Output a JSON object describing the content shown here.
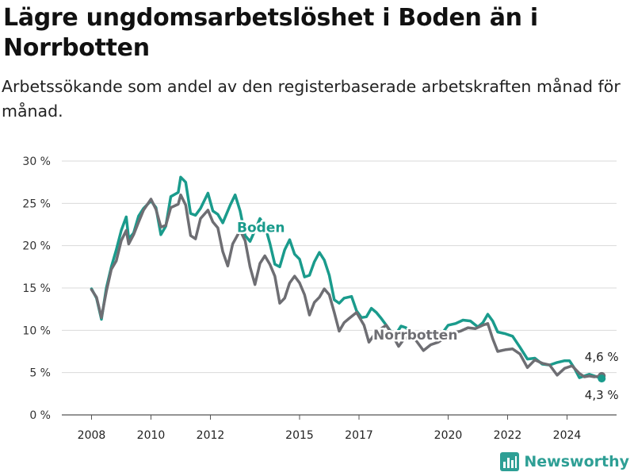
{
  "chart_data": {
    "type": "line",
    "title": "Lägre ungdomsarbetslöshet i Boden än i Norrbotten",
    "subtitle": "Arbetssökande som andel av den registerbaserade arbetskraften månad för månad.",
    "x_ticks": [
      "2008",
      "2010",
      "2012",
      "2015",
      "2017",
      "2020",
      "2022",
      "2024"
    ],
    "y_ticks": [
      "0 %",
      "5 %",
      "10 %",
      "15 %",
      "20 %",
      "25 %",
      "30 %"
    ],
    "xlim": [
      "2007-01",
      "2025-09"
    ],
    "ylim": [
      0,
      30
    ],
    "grid": true,
    "series": [
      {
        "name": "Boden",
        "color": "#1a9b8c",
        "end_label": "4,3 %",
        "points": [
          [
            "2008-01",
            14.9
          ],
          [
            "2008-03",
            13.8
          ],
          [
            "2008-05",
            11.3
          ],
          [
            "2008-07",
            15.0
          ],
          [
            "2008-09",
            17.5
          ],
          [
            "2008-11",
            19.5
          ],
          [
            "2009-01",
            21.8
          ],
          [
            "2009-03",
            23.4
          ],
          [
            "2009-04",
            20.8
          ],
          [
            "2009-06",
            21.5
          ],
          [
            "2009-08",
            23.5
          ],
          [
            "2009-10",
            24.4
          ],
          [
            "2010-01",
            25.3
          ],
          [
            "2010-03",
            24.5
          ],
          [
            "2010-05",
            21.3
          ],
          [
            "2010-07",
            22.3
          ],
          [
            "2010-09",
            25.8
          ],
          [
            "2010-12",
            26.3
          ],
          [
            "2011-01",
            28.1
          ],
          [
            "2011-03",
            27.5
          ],
          [
            "2011-05",
            23.8
          ],
          [
            "2011-07",
            23.6
          ],
          [
            "2011-09",
            24.4
          ],
          [
            "2011-12",
            26.2
          ],
          [
            "2012-02",
            24.1
          ],
          [
            "2012-04",
            23.7
          ],
          [
            "2012-06",
            22.7
          ],
          [
            "2012-09",
            24.8
          ],
          [
            "2012-11",
            26.0
          ],
          [
            "2013-01",
            24.1
          ],
          [
            "2013-03",
            21.2
          ],
          [
            "2013-05",
            20.5
          ],
          [
            "2013-07",
            21.8
          ],
          [
            "2013-09",
            23.2
          ],
          [
            "2013-11",
            22.4
          ],
          [
            "2014-01",
            20.3
          ],
          [
            "2014-03",
            17.8
          ],
          [
            "2014-05",
            17.5
          ],
          [
            "2014-07",
            19.5
          ],
          [
            "2014-09",
            20.7
          ],
          [
            "2014-11",
            19.0
          ],
          [
            "2015-01",
            18.4
          ],
          [
            "2015-03",
            16.3
          ],
          [
            "2015-05",
            16.5
          ],
          [
            "2015-07",
            18.1
          ],
          [
            "2015-09",
            19.2
          ],
          [
            "2015-11",
            18.3
          ],
          [
            "2016-01",
            16.5
          ],
          [
            "2016-03",
            13.6
          ],
          [
            "2016-05",
            13.2
          ],
          [
            "2016-07",
            13.8
          ],
          [
            "2016-10",
            14.0
          ],
          [
            "2016-12",
            12.3
          ],
          [
            "2017-02",
            11.5
          ],
          [
            "2017-04",
            11.6
          ],
          [
            "2017-06",
            12.6
          ],
          [
            "2017-08",
            12.1
          ],
          [
            "2017-10",
            11.4
          ],
          [
            "2017-12",
            10.6
          ],
          [
            "2018-02",
            9.8
          ],
          [
            "2018-04",
            9.6
          ],
          [
            "2018-06",
            10.5
          ],
          [
            "2018-08",
            10.3
          ],
          [
            "2018-10",
            9.6
          ],
          [
            "2019-01",
            9.3
          ],
          [
            "2019-04",
            9.1
          ],
          [
            "2019-07",
            9.0
          ],
          [
            "2019-10",
            9.4
          ],
          [
            "2020-01",
            10.6
          ],
          [
            "2020-04",
            10.8
          ],
          [
            "2020-07",
            11.2
          ],
          [
            "2020-10",
            11.1
          ],
          [
            "2021-01",
            10.4
          ],
          [
            "2021-03",
            10.9
          ],
          [
            "2021-05",
            11.9
          ],
          [
            "2021-07",
            11.1
          ],
          [
            "2021-09",
            9.8
          ],
          [
            "2021-12",
            9.6
          ],
          [
            "2022-03",
            9.3
          ],
          [
            "2022-06",
            8.0
          ],
          [
            "2022-09",
            6.6
          ],
          [
            "2022-12",
            6.7
          ],
          [
            "2023-03",
            6.0
          ],
          [
            "2023-06",
            5.9
          ],
          [
            "2023-09",
            6.2
          ],
          [
            "2023-12",
            6.4
          ],
          [
            "2024-02",
            6.4
          ],
          [
            "2024-04",
            5.5
          ],
          [
            "2024-06",
            4.4
          ],
          [
            "2024-08",
            4.6
          ],
          [
            "2024-10",
            4.8
          ],
          [
            "2024-12",
            4.6
          ],
          [
            "2025-03",
            4.3
          ]
        ]
      },
      {
        "name": "Norrbotten",
        "color": "#6e6e73",
        "end_label": "4,6 %",
        "points": [
          [
            "2008-01",
            14.8
          ],
          [
            "2008-03",
            13.9
          ],
          [
            "2008-05",
            11.5
          ],
          [
            "2008-07",
            14.6
          ],
          [
            "2008-09",
            17.2
          ],
          [
            "2008-11",
            18.2
          ],
          [
            "2009-01",
            20.6
          ],
          [
            "2009-03",
            21.8
          ],
          [
            "2009-04",
            20.2
          ],
          [
            "2009-06",
            21.3
          ],
          [
            "2009-08",
            22.8
          ],
          [
            "2009-10",
            24.2
          ],
          [
            "2010-01",
            25.5
          ],
          [
            "2010-03",
            24.3
          ],
          [
            "2010-05",
            22.2
          ],
          [
            "2010-07",
            22.4
          ],
          [
            "2010-09",
            24.5
          ],
          [
            "2010-12",
            24.9
          ],
          [
            "2011-01",
            26.0
          ],
          [
            "2011-03",
            24.8
          ],
          [
            "2011-05",
            21.2
          ],
          [
            "2011-07",
            20.8
          ],
          [
            "2011-09",
            23.2
          ],
          [
            "2011-12",
            24.2
          ],
          [
            "2012-02",
            22.8
          ],
          [
            "2012-04",
            22.1
          ],
          [
            "2012-06",
            19.3
          ],
          [
            "2012-08",
            17.6
          ],
          [
            "2012-10",
            20.2
          ],
          [
            "2013-01",
            21.8
          ],
          [
            "2013-03",
            20.6
          ],
          [
            "2013-05",
            17.5
          ],
          [
            "2013-07",
            15.4
          ],
          [
            "2013-09",
            17.9
          ],
          [
            "2013-11",
            18.8
          ],
          [
            "2014-01",
            17.8
          ],
          [
            "2014-03",
            16.4
          ],
          [
            "2014-05",
            13.2
          ],
          [
            "2014-07",
            13.8
          ],
          [
            "2014-09",
            15.6
          ],
          [
            "2014-11",
            16.4
          ],
          [
            "2015-01",
            15.6
          ],
          [
            "2015-03",
            14.2
          ],
          [
            "2015-05",
            11.8
          ],
          [
            "2015-07",
            13.3
          ],
          [
            "2015-09",
            13.9
          ],
          [
            "2015-11",
            14.9
          ],
          [
            "2016-01",
            14.2
          ],
          [
            "2016-03",
            12.1
          ],
          [
            "2016-05",
            9.9
          ],
          [
            "2016-07",
            10.9
          ],
          [
            "2016-09",
            11.4
          ],
          [
            "2016-12",
            12.1
          ],
          [
            "2017-03",
            10.6
          ],
          [
            "2017-05",
            8.6
          ],
          [
            "2017-07",
            9.4
          ],
          [
            "2017-10",
            10.2
          ],
          [
            "2017-12",
            10.6
          ],
          [
            "2018-02",
            9.7
          ],
          [
            "2018-05",
            8.1
          ],
          [
            "2018-07",
            8.9
          ],
          [
            "2018-10",
            9.4
          ],
          [
            "2018-12",
            8.8
          ],
          [
            "2019-03",
            7.6
          ],
          [
            "2019-06",
            8.3
          ],
          [
            "2019-09",
            8.6
          ],
          [
            "2019-12",
            9.2
          ],
          [
            "2020-03",
            9.7
          ],
          [
            "2020-06",
            9.9
          ],
          [
            "2020-09",
            10.3
          ],
          [
            "2020-12",
            10.2
          ],
          [
            "2021-03",
            10.6
          ],
          [
            "2021-05",
            10.8
          ],
          [
            "2021-07",
            9.0
          ],
          [
            "2021-09",
            7.5
          ],
          [
            "2021-12",
            7.7
          ],
          [
            "2022-03",
            7.8
          ],
          [
            "2022-06",
            7.2
          ],
          [
            "2022-09",
            5.6
          ],
          [
            "2022-12",
            6.5
          ],
          [
            "2023-03",
            6.1
          ],
          [
            "2023-06",
            5.9
          ],
          [
            "2023-09",
            4.7
          ],
          [
            "2023-12",
            5.5
          ],
          [
            "2024-03",
            5.8
          ],
          [
            "2024-06",
            4.9
          ],
          [
            "2024-08",
            4.5
          ],
          [
            "2024-10",
            4.6
          ],
          [
            "2024-12",
            4.5
          ],
          [
            "2025-03",
            4.6
          ]
        ]
      }
    ]
  },
  "brand": {
    "name": "Newsworthy"
  }
}
